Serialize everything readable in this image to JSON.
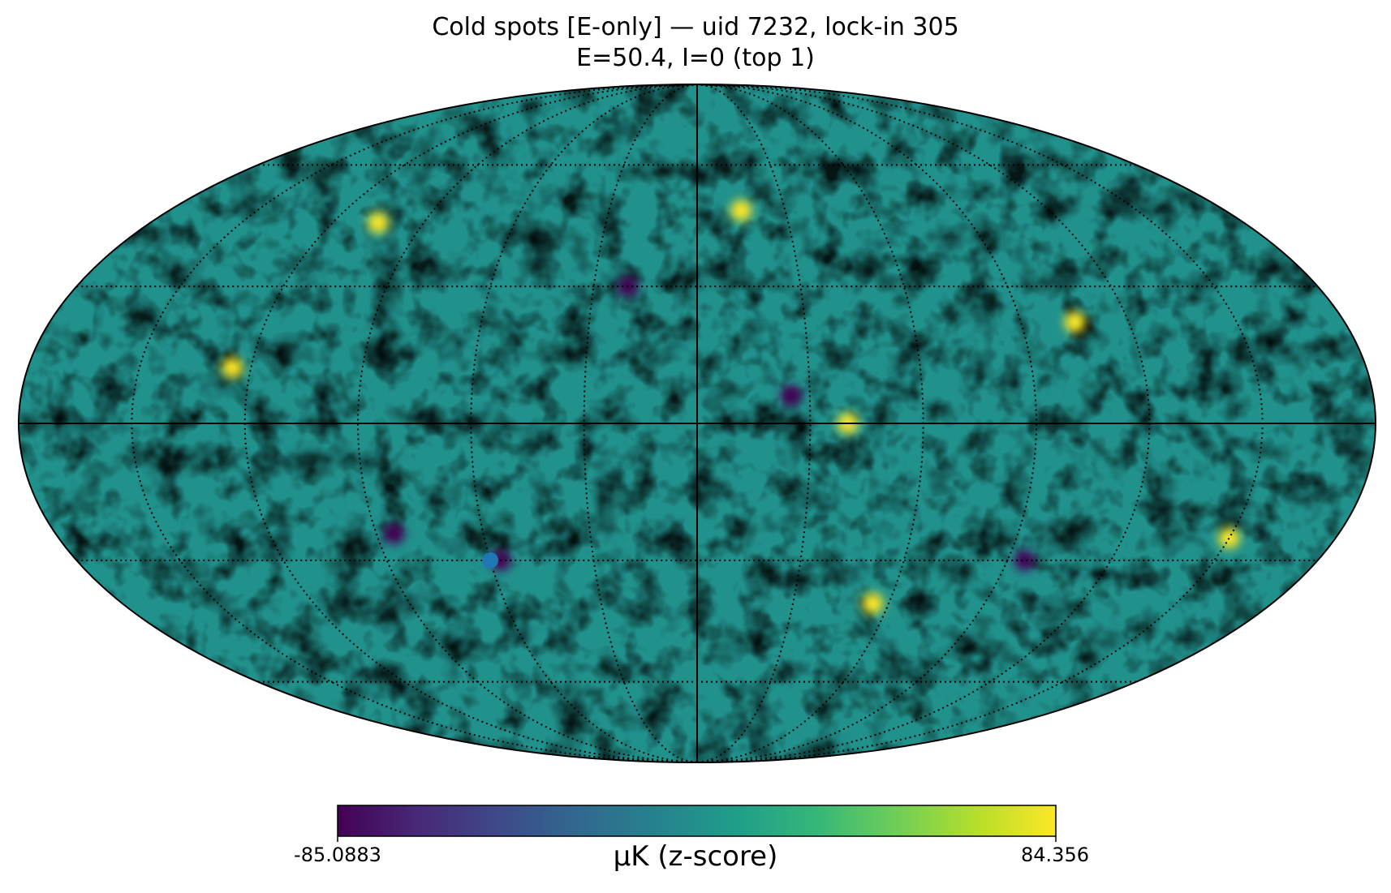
{
  "title": {
    "line1": "Cold spots [E-only] — uid 7232, lock-in 305",
    "line2": "E=50.4, I=0  (top 1)"
  },
  "map": {
    "projection": "mollweide",
    "colormap": "viridis",
    "graticule_dotted": true,
    "marked_spot": {
      "lon_deg": -60,
      "lat_deg": -30,
      "color": "#1f77b4"
    },
    "cold_spots": [
      {
        "lon_deg": -57,
        "lat_deg": -30
      },
      {
        "lon_deg": -85,
        "lat_deg": -24
      },
      {
        "lon_deg": 25,
        "lat_deg": 6
      },
      {
        "lon_deg": 95,
        "lat_deg": -30
      },
      {
        "lon_deg": -20,
        "lat_deg": 30
      }
    ],
    "hot_spots": [
      {
        "lon_deg": -105,
        "lat_deg": 45
      },
      {
        "lon_deg": -125,
        "lat_deg": 12
      },
      {
        "lon_deg": 15,
        "lat_deg": 48
      },
      {
        "lon_deg": 40,
        "lat_deg": 0
      },
      {
        "lon_deg": 150,
        "lat_deg": -25
      },
      {
        "lon_deg": 105,
        "lat_deg": 22
      },
      {
        "lon_deg": 55,
        "lat_deg": -40
      }
    ]
  },
  "colorbar": {
    "min": "-85.0883",
    "max": "84.356",
    "unit_label": "μK (z-score)",
    "stops": [
      "#440154",
      "#482878",
      "#3e4989",
      "#31688e",
      "#26828e",
      "#1f9e89",
      "#35b779",
      "#6ece58",
      "#b5de2b",
      "#fde725"
    ]
  }
}
